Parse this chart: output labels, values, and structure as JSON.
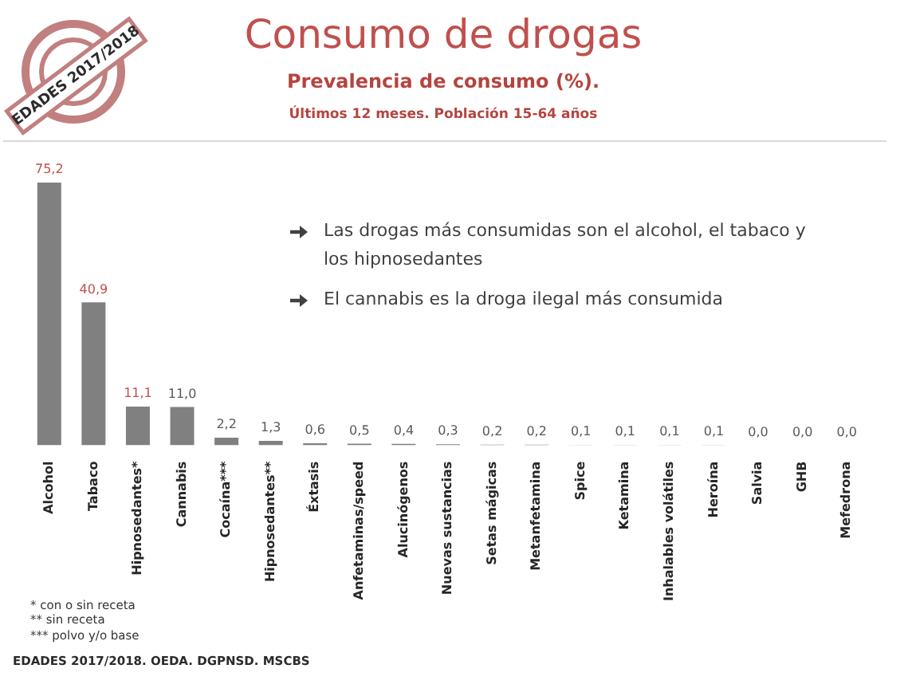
{
  "chart_data": {
    "type": "bar",
    "title": "Consumo de drogas",
    "subtitle": "Prevalencia de consumo (%).",
    "categories": [
      "Alcohol",
      "Tabaco",
      "Hipnosedantes*",
      "Cannabis",
      "Cocaína***",
      "Hipnosedantes**",
      "Éxtasis",
      "Anfetaminas/speed",
      "Alucinógenos",
      "Nuevas sustancias",
      "Setas mágicas",
      "Metanfetamina",
      "Spice",
      "Ketamina",
      "Inhalables volátiles",
      "Heroína",
      "Salvia",
      "GHB",
      "Mefedrona"
    ],
    "values": [
      75.2,
      40.9,
      11.1,
      11.0,
      2.2,
      1.3,
      0.6,
      0.5,
      0.4,
      0.3,
      0.2,
      0.2,
      0.1,
      0.1,
      0.1,
      0.1,
      0.0,
      0.0,
      0.0
    ],
    "value_labels": [
      "75,2",
      "40,9",
      "11,1",
      "11,0",
      "2,2",
      "1,3",
      "0,6",
      "0,5",
      "0,4",
      "0,3",
      "0,2",
      "0,2",
      "0,1",
      "0,1",
      "0,1",
      "0,1",
      "0,0",
      "0,0",
      "0,0"
    ],
    "color": "#808080",
    "annotations": [
      "Últimos 12 meses. Población 15-64 años",
      "EDADES 2017/2018",
      "Las drogas más consumidas son el alcohol, el tabaco y los hipnosedantes",
      "El cannabis es la droga ilegal más consumida",
      "* con o sin receta",
      "** sin receta",
      "*** polvo y/o base",
      "EDADES 2017/2018. OEDA. DGPNSD. MSCBS"
    ]
  }
}
